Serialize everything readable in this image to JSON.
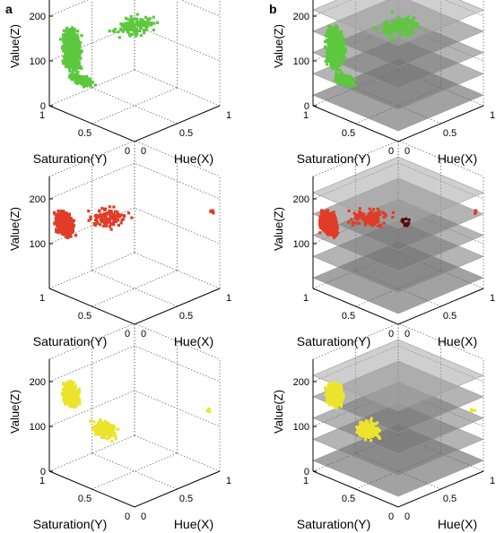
{
  "figure": {
    "panel_labels": [
      "a",
      "b"
    ],
    "colors": {
      "green": "#5cc83e",
      "red": "#e03c28",
      "yellow": "#ece42c",
      "dark_red": "#5a0a0a"
    }
  },
  "chart_data": [
    {
      "type": "scatter",
      "panel": "a",
      "row": 1,
      "color_name": "green",
      "xlabel": "Hue(X)",
      "ylabel": "Saturation(Y)",
      "zlabel": "Value(Z)",
      "xlim": [
        0,
        1
      ],
      "ylim": [
        0,
        1
      ],
      "zlim": [
        0,
        250
      ],
      "x_ticks": [
        "0",
        "0.5",
        "1"
      ],
      "y_ticks": [
        "0",
        "0.5",
        "1"
      ],
      "z_ticks": [
        "0",
        "100",
        "200"
      ],
      "grid": true
    },
    {
      "type": "scatter",
      "panel": "b",
      "row": 1,
      "color_name": "green",
      "slices": 5,
      "xlabel": "Hue(X)",
      "ylabel": "Saturation(Y)",
      "zlabel": "Value(Z)",
      "xlim": [
        0,
        1
      ],
      "ylim": [
        0,
        1
      ],
      "zlim": [
        0,
        250
      ],
      "x_ticks": [
        "0",
        "0.5",
        "1"
      ],
      "y_ticks": [
        "0",
        "0.5",
        "1"
      ],
      "z_ticks": [
        "0",
        "100",
        "200"
      ],
      "grid": true
    },
    {
      "type": "scatter",
      "panel": "a",
      "row": 2,
      "color_name": "red",
      "xlabel": "Hue(X)",
      "ylabel": "Saturation(Y)",
      "zlabel": "Value(Z)",
      "xlim": [
        0,
        1
      ],
      "ylim": [
        0,
        1
      ],
      "zlim": [
        0,
        250
      ],
      "x_ticks": [
        "0",
        "0.5",
        "1"
      ],
      "y_ticks": [
        "0",
        "0.5",
        "1"
      ],
      "z_ticks": [
        "100",
        "200"
      ],
      "grid": true
    },
    {
      "type": "scatter",
      "panel": "b",
      "row": 2,
      "color_name": "red",
      "slices": 5,
      "xlabel": "Hue(X)",
      "ylabel": "Saturation(Y)",
      "zlabel": "Value(Z)",
      "xlim": [
        0,
        1
      ],
      "ylim": [
        0,
        1
      ],
      "zlim": [
        0,
        250
      ],
      "x_ticks": [
        "0",
        "0.5",
        "1"
      ],
      "y_ticks": [
        "0",
        "0.5",
        "1"
      ],
      "z_ticks": [
        "100",
        "200"
      ],
      "grid": true
    },
    {
      "type": "scatter",
      "panel": "a",
      "row": 3,
      "color_name": "yellow",
      "xlabel": "Hue(X)",
      "ylabel": "Saturation(Y)",
      "zlabel": "Value(Z)",
      "xlim": [
        0,
        1
      ],
      "ylim": [
        0,
        1
      ],
      "zlim": [
        0,
        250
      ],
      "x_ticks": [
        "0",
        "0.5",
        "1"
      ],
      "y_ticks": [
        "0",
        "0.5",
        "1"
      ],
      "z_ticks": [
        "0",
        "100",
        "200"
      ],
      "grid": true
    },
    {
      "type": "scatter",
      "panel": "b",
      "row": 3,
      "color_name": "yellow",
      "slices": 5,
      "xlabel": "Hue(X)",
      "ylabel": "Saturation(Y)",
      "zlabel": "Value(Z)",
      "xlim": [
        0,
        1
      ],
      "ylim": [
        0,
        1
      ],
      "zlim": [
        0,
        250
      ],
      "x_ticks": [
        "0",
        "0.5",
        "1"
      ],
      "y_ticks": [
        "0",
        "0.5",
        "1"
      ],
      "z_ticks": [
        "0",
        "100",
        "200"
      ],
      "grid": true
    }
  ]
}
